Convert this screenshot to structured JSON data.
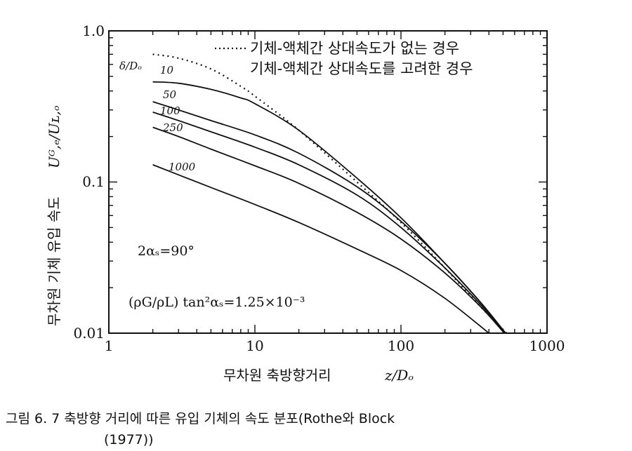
{
  "chart_data": {
    "type": "line",
    "x_scale": "log",
    "y_scale": "log",
    "xlim": [
      1,
      1000
    ],
    "ylim": [
      0.01,
      1.0
    ],
    "x_ticks": [
      "1",
      "10",
      "100",
      "1000"
    ],
    "y_ticks": [
      "0.01",
      "0.1",
      "1.0"
    ],
    "xlabel": "무차원 축방향거리",
    "xlabel_var": "z/Dₒ",
    "ylabel": "무차원 기체 유입 속도",
    "ylabel_var": "Uᴳ,ₑ/Uʟ,ₒ",
    "legend": {
      "placement": "top-right",
      "dotted": "기체-액체간 상대속도가 없는 경우",
      "solid": "기체-액체간 상대속도를 고려한 경우"
    },
    "series_param_label": "δ/Dₒ",
    "series": [
      {
        "name": "10",
        "style": "solid",
        "x": [
          2,
          3,
          5,
          8,
          10,
          20,
          50,
          100,
          200,
          350,
          520
        ],
        "y": [
          0.46,
          0.45,
          0.41,
          0.36,
          0.33,
          0.22,
          0.106,
          0.058,
          0.029,
          0.016,
          0.01
        ]
      },
      {
        "name": "50",
        "style": "solid",
        "x": [
          2,
          3,
          5,
          10,
          20,
          50,
          100,
          200,
          350,
          520
        ],
        "y": [
          0.34,
          0.3,
          0.255,
          0.205,
          0.155,
          0.093,
          0.055,
          0.029,
          0.016,
          0.01
        ]
      },
      {
        "name": "100",
        "style": "solid",
        "x": [
          2,
          3,
          5,
          10,
          20,
          50,
          100,
          200,
          350,
          520
        ],
        "y": [
          0.29,
          0.255,
          0.215,
          0.17,
          0.13,
          0.082,
          0.05,
          0.027,
          0.0155,
          0.01
        ]
      },
      {
        "name": "250",
        "style": "solid",
        "x": [
          2,
          3,
          5,
          10,
          20,
          50,
          100,
          200,
          350,
          510
        ],
        "y": [
          0.23,
          0.2,
          0.165,
          0.128,
          0.098,
          0.063,
          0.042,
          0.025,
          0.015,
          0.01
        ]
      },
      {
        "name": "1000",
        "style": "solid",
        "x": [
          2,
          5,
          10,
          20,
          50,
          100,
          200,
          400
        ],
        "y": [
          0.13,
          0.092,
          0.071,
          0.054,
          0.036,
          0.026,
          0.017,
          0.01
        ]
      },
      {
        "name": "",
        "style": "dotted",
        "x": [
          2,
          3,
          5,
          8,
          10,
          20,
          50,
          100,
          200,
          350,
          530
        ],
        "y": [
          0.7,
          0.66,
          0.56,
          0.43,
          0.37,
          0.22,
          0.1,
          0.054,
          0.027,
          0.015,
          0.01
        ]
      }
    ],
    "annotations": [
      "2αₛ=90°",
      "(ρG/ρL) tan²αₛ=1.25×10⁻³"
    ]
  },
  "caption": {
    "line1": "그림 6. 7  축방향 거리에 따른 유입 기체의 속도 분포(Rothe와  Block",
    "line2": "(1977))"
  }
}
